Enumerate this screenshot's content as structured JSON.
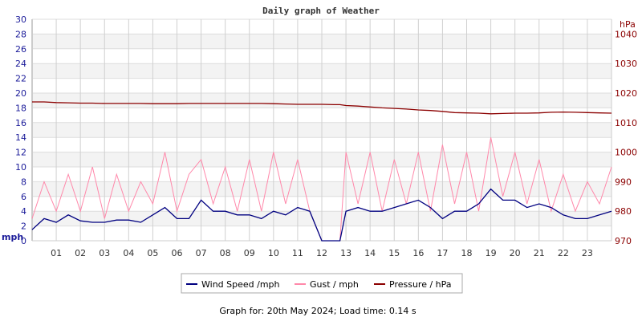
{
  "chart_data": {
    "type": "line",
    "title": "Daily graph of Weather",
    "left_axis": {
      "unit": "mph",
      "range": [
        0,
        30
      ],
      "ticks": [
        0,
        2,
        4,
        6,
        8,
        10,
        12,
        14,
        16,
        18,
        20,
        22,
        24,
        26,
        28,
        30
      ],
      "color": "#1a1a99"
    },
    "right_axis": {
      "unit": "hPa",
      "range": [
        970,
        1045
      ],
      "ticks": [
        970,
        980,
        990,
        1000,
        1010,
        1020,
        1030,
        1040
      ],
      "color": "#8b0000"
    },
    "x_axis": {
      "range": [
        0,
        24
      ],
      "ticks": [
        "01",
        "02",
        "03",
        "04",
        "05",
        "06",
        "07",
        "08",
        "09",
        "10",
        "11",
        "12",
        "13",
        "14",
        "15",
        "16",
        "17",
        "18",
        "19",
        "20",
        "21",
        "22",
        "23"
      ]
    },
    "grid": true,
    "legend_position": "bottom",
    "x": [
      0,
      0.5,
      1,
      1.5,
      2,
      2.5,
      3,
      3.5,
      4,
      4.5,
      5,
      5.5,
      6,
      6.5,
      7,
      7.5,
      8,
      8.5,
      9,
      9.5,
      10,
      10.5,
      11,
      11.5,
      12,
      12.5,
      12.75,
      13,
      13.5,
      14,
      14.5,
      15,
      15.5,
      16,
      16.5,
      17,
      17.5,
      18,
      18.5,
      19,
      19.5,
      20,
      20.5,
      21,
      21.5,
      22,
      22.5,
      23,
      23.5,
      24
    ],
    "series": [
      {
        "name": "Wind Speed /mph",
        "axis": "left",
        "color": "#000080",
        "values": [
          1.5,
          3,
          2.5,
          3.5,
          2.7,
          2.5,
          2.5,
          2.8,
          2.8,
          2.5,
          3.5,
          4.5,
          3,
          3,
          5.5,
          4,
          4,
          3.5,
          3.5,
          3,
          4,
          3.5,
          4.5,
          4,
          0,
          0,
          0,
          4,
          4.5,
          4,
          4,
          4.5,
          5,
          5.5,
          4.5,
          3,
          4,
          4,
          5,
          7,
          5.5,
          5.5,
          4.5,
          5,
          4.5,
          3.5,
          3,
          3,
          3.5,
          4
        ]
      },
      {
        "name": "Gust / mph",
        "axis": "left",
        "color": "#ff88aa",
        "values": [
          3,
          8,
          4,
          9,
          4,
          10,
          3,
          9,
          4,
          8,
          5,
          12,
          4,
          9,
          11,
          5,
          10,
          4,
          11,
          4,
          12,
          5,
          11,
          4,
          0,
          0,
          0,
          12,
          5,
          12,
          4,
          11,
          5,
          12,
          4,
          13,
          5,
          12,
          4,
          14,
          6,
          12,
          5,
          11,
          4,
          9,
          4,
          8,
          5,
          10
        ]
      },
      {
        "name": "Pressure / hPa",
        "axis": "right",
        "color": "#8b0000",
        "values": [
          1017,
          1017,
          1016.8,
          1016.7,
          1016.6,
          1016.6,
          1016.5,
          1016.5,
          1016.5,
          1016.5,
          1016.4,
          1016.4,
          1016.4,
          1016.5,
          1016.5,
          1016.5,
          1016.5,
          1016.5,
          1016.5,
          1016.5,
          1016.4,
          1016.3,
          1016.2,
          1016.2,
          1016.2,
          1016.1,
          1016.1,
          1015.8,
          1015.6,
          1015.3,
          1015,
          1014.8,
          1014.6,
          1014.3,
          1014.1,
          1013.8,
          1013.4,
          1013.3,
          1013.2,
          1013,
          1013.1,
          1013.2,
          1013.2,
          1013.3,
          1013.5,
          1013.6,
          1013.5,
          1013.4,
          1013.3,
          1013.2
        ]
      }
    ]
  },
  "footer": "Graph for: 20th May 2024; Load time: 0.14 s"
}
